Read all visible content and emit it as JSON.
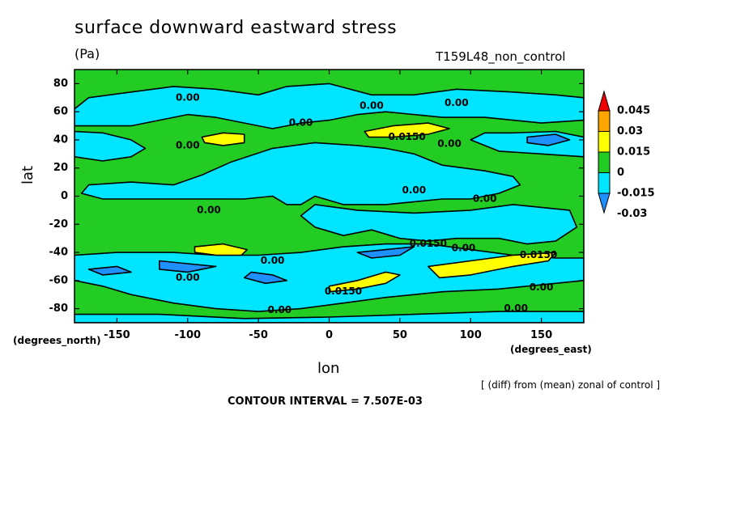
{
  "title": "surface downward eastward stress",
  "units": "(Pa)",
  "run_name": "T159L48_non_control",
  "lat_units": "(degrees_north)",
  "lon_units": "(degrees_east)",
  "x_label": "lon",
  "y_label": "lat",
  "note": "[ (diff) from (mean) zonal of control ]",
  "contour_interval": "CONTOUR INTERVAL = 7.507E-03",
  "chart_data": {
    "type": "heatmap",
    "title": "surface downward eastward stress",
    "units": "(Pa)",
    "xlabel": "lon",
    "ylabel": "lat",
    "xlim": [
      -180,
      180
    ],
    "ylim": [
      -90,
      90
    ],
    "xticks": [
      -150,
      -100,
      -50,
      0,
      50,
      100,
      150
    ],
    "yticks": [
      -80,
      -60,
      -40,
      -20,
      0,
      20,
      40,
      60,
      80
    ],
    "contour_interval": 0.007507,
    "colorbar": {
      "levels": [
        "-0.03",
        "-0.015",
        "0",
        "0.015",
        "0.03",
        "0.045"
      ],
      "colors": [
        "#1e90ff",
        "#00e5ff",
        "#22cc22",
        "#ffff00",
        "#ffa500",
        "#ee0000"
      ]
    },
    "background_color": "#22cc22",
    "regions": [
      {
        "level": "-0.015 to 0",
        "color": "#00e5ff",
        "points": [
          [
            -180,
            62
          ],
          [
            -170,
            70
          ],
          [
            -140,
            74
          ],
          [
            -110,
            78
          ],
          [
            -80,
            76
          ],
          [
            -50,
            72
          ],
          [
            -30,
            78
          ],
          [
            0,
            80
          ],
          [
            30,
            72
          ],
          [
            60,
            72
          ],
          [
            90,
            76
          ],
          [
            130,
            74
          ],
          [
            160,
            72
          ],
          [
            180,
            70
          ],
          [
            180,
            54
          ],
          [
            150,
            52
          ],
          [
            110,
            56
          ],
          [
            80,
            56
          ],
          [
            60,
            58
          ],
          [
            40,
            60
          ],
          [
            20,
            58
          ],
          [
            0,
            54
          ],
          [
            -20,
            52
          ],
          [
            -30,
            50
          ],
          [
            -40,
            48
          ],
          [
            -60,
            52
          ],
          [
            -80,
            56
          ],
          [
            -100,
            58
          ],
          [
            -120,
            54
          ],
          [
            -140,
            50
          ],
          [
            -160,
            50
          ],
          [
            -180,
            50
          ]
        ]
      },
      {
        "level": "-0.015 to 0",
        "color": "#00e5ff",
        "points": [
          [
            -180,
            46
          ],
          [
            -160,
            45
          ],
          [
            -140,
            40
          ],
          [
            -130,
            34
          ],
          [
            -140,
            28
          ],
          [
            -160,
            25
          ],
          [
            -180,
            28
          ]
        ]
      },
      {
        "level": "-0.015 to 0",
        "color": "#00e5ff",
        "points": [
          [
            110,
            45
          ],
          [
            130,
            45
          ],
          [
            160,
            46
          ],
          [
            180,
            42
          ],
          [
            180,
            28
          ],
          [
            150,
            30
          ],
          [
            120,
            32
          ],
          [
            100,
            40
          ]
        ]
      },
      {
        "level": "-0.015 to 0",
        "color": "#00e5ff",
        "points": [
          [
            -170,
            8
          ],
          [
            -140,
            10
          ],
          [
            -110,
            8
          ],
          [
            -90,
            15
          ],
          [
            -70,
            24
          ],
          [
            -40,
            34
          ],
          [
            -10,
            38
          ],
          [
            20,
            36
          ],
          [
            40,
            34
          ],
          [
            60,
            30
          ],
          [
            80,
            22
          ],
          [
            110,
            18
          ],
          [
            130,
            14
          ],
          [
            135,
            8
          ],
          [
            120,
            2
          ],
          [
            100,
            -2
          ],
          [
            80,
            -2
          ],
          [
            40,
            -6
          ],
          [
            10,
            -6
          ],
          [
            -10,
            0
          ],
          [
            -20,
            -6
          ],
          [
            -30,
            -6
          ],
          [
            -40,
            0
          ],
          [
            -60,
            -2
          ],
          [
            -80,
            -2
          ],
          [
            -100,
            -2
          ],
          [
            -130,
            -2
          ],
          [
            -160,
            -2
          ],
          [
            -175,
            2
          ]
        ]
      },
      {
        "level": "-0.015 to 0",
        "color": "#00e5ff",
        "points": [
          [
            -10,
            -6
          ],
          [
            20,
            -10
          ],
          [
            60,
            -12
          ],
          [
            100,
            -10
          ],
          [
            130,
            -6
          ],
          [
            150,
            -8
          ],
          [
            170,
            -10
          ],
          [
            175,
            -22
          ],
          [
            160,
            -32
          ],
          [
            140,
            -34
          ],
          [
            120,
            -30
          ],
          [
            90,
            -30
          ],
          [
            70,
            -32
          ],
          [
            50,
            -30
          ],
          [
            30,
            -24
          ],
          [
            10,
            -28
          ],
          [
            -10,
            -22
          ],
          [
            -20,
            -14
          ]
        ]
      },
      {
        "level": "-0.015 to 0",
        "color": "#00e5ff",
        "points": [
          [
            -180,
            -42
          ],
          [
            -150,
            -40
          ],
          [
            -110,
            -40
          ],
          [
            -80,
            -42
          ],
          [
            -50,
            -42
          ],
          [
            -20,
            -40
          ],
          [
            10,
            -36
          ],
          [
            40,
            -34
          ],
          [
            70,
            -34
          ],
          [
            100,
            -38
          ],
          [
            130,
            -42
          ],
          [
            160,
            -44
          ],
          [
            180,
            -44
          ],
          [
            180,
            -60
          ],
          [
            160,
            -62
          ],
          [
            120,
            -66
          ],
          [
            80,
            -68
          ],
          [
            40,
            -72
          ],
          [
            10,
            -76
          ],
          [
            -20,
            -80
          ],
          [
            -50,
            -82
          ],
          [
            -80,
            -80
          ],
          [
            -110,
            -76
          ],
          [
            -140,
            -70
          ],
          [
            -160,
            -64
          ],
          [
            -180,
            -60
          ]
        ]
      },
      {
        "level": "-0.015 to 0",
        "color": "#00e5ff",
        "points": [
          [
            -180,
            -84
          ],
          [
            -120,
            -84
          ],
          [
            -60,
            -87
          ],
          [
            0,
            -86
          ],
          [
            60,
            -84
          ],
          [
            120,
            -82
          ],
          [
            180,
            -82
          ],
          [
            180,
            -90
          ],
          [
            -180,
            -90
          ]
        ]
      },
      {
        "level": "-0.03 to -0.015",
        "color": "#1e90ff",
        "points": [
          [
            -120,
            -46
          ],
          [
            -100,
            -48
          ],
          [
            -80,
            -50
          ],
          [
            -100,
            -54
          ],
          [
            -120,
            -52
          ]
        ]
      },
      {
        "level": "-0.03 to -0.015",
        "color": "#1e90ff",
        "points": [
          [
            -55,
            -54
          ],
          [
            -40,
            -56
          ],
          [
            -30,
            -60
          ],
          [
            -45,
            -62
          ],
          [
            -60,
            -58
          ]
        ]
      },
      {
        "level": "-0.03 to -0.015",
        "color": "#1e90ff",
        "points": [
          [
            20,
            -40
          ],
          [
            40,
            -38
          ],
          [
            60,
            -36
          ],
          [
            50,
            -42
          ],
          [
            30,
            -44
          ]
        ]
      },
      {
        "level": "-0.03 to -0.015",
        "color": "#1e90ff",
        "points": [
          [
            140,
            42
          ],
          [
            160,
            44
          ],
          [
            170,
            40
          ],
          [
            155,
            36
          ],
          [
            140,
            38
          ]
        ]
      },
      {
        "level": "-0.03 to -0.015",
        "color": "#1e90ff",
        "points": [
          [
            -170,
            -52
          ],
          [
            -150,
            -50
          ],
          [
            -140,
            -54
          ],
          [
            -160,
            -56
          ]
        ]
      },
      {
        "level": "0.015 to 0.03",
        "color": "#ffff00",
        "points": [
          [
            -90,
            42
          ],
          [
            -75,
            45
          ],
          [
            -60,
            44
          ],
          [
            -60,
            38
          ],
          [
            -75,
            36
          ],
          [
            -88,
            38
          ]
        ]
      },
      {
        "level": "0.015 to 0.03",
        "color": "#ffff00",
        "points": [
          [
            25,
            46
          ],
          [
            45,
            50
          ],
          [
            70,
            52
          ],
          [
            85,
            48
          ],
          [
            70,
            44
          ],
          [
            45,
            42
          ],
          [
            28,
            42
          ]
        ]
      },
      {
        "level": "0.015 to 0.03",
        "color": "#ffff00",
        "points": [
          [
            -95,
            -36
          ],
          [
            -75,
            -34
          ],
          [
            -58,
            -38
          ],
          [
            -62,
            -42
          ],
          [
            -80,
            -42
          ],
          [
            -95,
            -40
          ]
        ]
      },
      {
        "level": "0.015 to 0.03",
        "color": "#ffff00",
        "points": [
          [
            0,
            -64
          ],
          [
            20,
            -60
          ],
          [
            40,
            -54
          ],
          [
            50,
            -56
          ],
          [
            40,
            -62
          ],
          [
            20,
            -66
          ],
          [
            0,
            -68
          ]
        ]
      },
      {
        "level": "0.015 to 0.03",
        "color": "#ffff00",
        "points": [
          [
            70,
            -50
          ],
          [
            100,
            -46
          ],
          [
            130,
            -42
          ],
          [
            160,
            -40
          ],
          [
            155,
            -46
          ],
          [
            130,
            -50
          ],
          [
            100,
            -56
          ],
          [
            78,
            -58
          ]
        ]
      }
    ],
    "contour_labels": [
      {
        "text": "0.00",
        "lon": -100,
        "lat": 70
      },
      {
        "text": "0.00",
        "lon": 30,
        "lat": 64
      },
      {
        "text": "0.00",
        "lon": 90,
        "lat": 66
      },
      {
        "text": "0.00",
        "lon": -20,
        "lat": 52
      },
      {
        "text": "0.00",
        "lon": -100,
        "lat": 36
      },
      {
        "text": "0.0150",
        "lon": 55,
        "lat": 42
      },
      {
        "text": "0.00",
        "lon": 85,
        "lat": 37
      },
      {
        "text": "0.00",
        "lon": 60,
        "lat": 4
      },
      {
        "text": "0.00",
        "lon": 110,
        "lat": -2
      },
      {
        "text": "0.00",
        "lon": -85,
        "lat": -10
      },
      {
        "text": "0.0150",
        "lon": 70,
        "lat": -34
      },
      {
        "text": "0.00",
        "lon": 95,
        "lat": -37
      },
      {
        "text": "0.0150",
        "lon": 148,
        "lat": -42
      },
      {
        "text": "0.00",
        "lon": -40,
        "lat": -46
      },
      {
        "text": "0.00",
        "lon": -100,
        "lat": -58
      },
      {
        "text": "0.0150",
        "lon": 10,
        "lat": -68
      },
      {
        "text": "0.00",
        "lon": 150,
        "lat": -65
      },
      {
        "text": "0.00",
        "lon": -35,
        "lat": -81
      },
      {
        "text": "0.00",
        "lon": 132,
        "lat": -80
      }
    ]
  }
}
